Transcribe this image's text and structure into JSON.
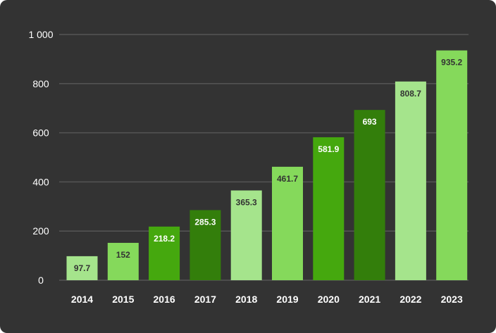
{
  "chart_data": {
    "type": "bar",
    "categories": [
      "2014",
      "2015",
      "2016",
      "2017",
      "2018",
      "2019",
      "2020",
      "2021",
      "2022",
      "2023"
    ],
    "values": [
      97.7,
      152,
      218.2,
      285.3,
      365.3,
      461.7,
      581.9,
      693,
      808.7,
      935.2
    ],
    "value_labels": [
      "97.7",
      "152",
      "218.2",
      "285.3",
      "365.3",
      "461.7",
      "581.9",
      "693",
      "808.7",
      "935.2"
    ],
    "ylim": [
      0,
      1000
    ],
    "yticks": [
      0,
      200,
      400,
      600,
      800,
      1000
    ],
    "ytick_labels": [
      "0",
      "200",
      "400",
      "600",
      "800",
      "1 000"
    ],
    "grid": true,
    "title": "",
    "xlabel": "",
    "ylabel": "",
    "bar_colors": [
      "#a5e48c",
      "#85d95b",
      "#45a80e",
      "#337e0b",
      "#a5e48c",
      "#85d95b",
      "#45a80e",
      "#337e0b",
      "#a5e48c",
      "#85d95b"
    ],
    "label_colors": [
      "#333333",
      "#333333",
      "#ffffff",
      "#ffffff",
      "#333333",
      "#333333",
      "#ffffff",
      "#ffffff",
      "#333333",
      "#333333"
    ],
    "background_color": "#333333",
    "grid_color": "#555555",
    "text_color": "#ffffff"
  }
}
